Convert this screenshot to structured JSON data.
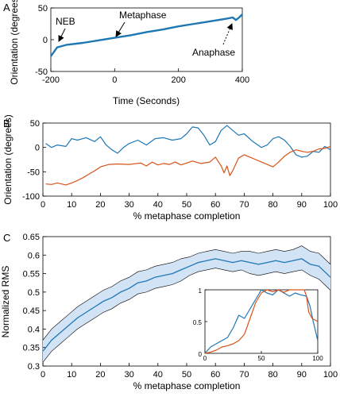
{
  "colors": {
    "blue": "#1f77b4",
    "orange": "#d95319",
    "band": "#d2e3f5",
    "black": "#000000"
  },
  "chart_data": [
    {
      "panel": "A",
      "type": "line",
      "xlabel": "Time (Seconds)",
      "ylabel": "Orientation (degrees)",
      "xlim": [
        -200,
        400
      ],
      "ylim": [
        -50,
        50
      ],
      "xticks": [
        -200,
        0,
        200,
        400
      ],
      "yticks": [
        -50,
        0,
        50
      ],
      "series": [
        {
          "color": "#1f77b4",
          "x": [
            -200,
            -180,
            -150,
            -100,
            -50,
            0,
            50,
            100,
            150,
            200,
            250,
            300,
            350,
            370,
            380,
            390,
            400
          ],
          "y": [
            -26,
            -12,
            -8,
            -5,
            -1,
            3,
            7,
            12,
            16,
            21,
            25,
            29,
            33,
            35,
            31,
            35,
            40
          ]
        }
      ],
      "annotations": [
        {
          "text": "NEB",
          "x": -185,
          "y": -10
        },
        {
          "text": "Metaphase",
          "x": 0,
          "y": 0
        },
        {
          "text": "Anaphase",
          "x": 380,
          "y": 38
        }
      ]
    },
    {
      "panel": "B",
      "type": "line",
      "xlabel": "% metaphase completion",
      "ylabel": "Orientation (degrees)",
      "xlim": [
        0,
        100
      ],
      "ylim": [
        -100,
        50
      ],
      "xticks": [
        0,
        10,
        20,
        30,
        40,
        50,
        60,
        70,
        80,
        90,
        100
      ],
      "yticks": [
        -100,
        -50,
        0,
        50
      ],
      "series": [
        {
          "color": "#1f77b4",
          "x": [
            1,
            3,
            5,
            8,
            10,
            12,
            15,
            18,
            20,
            22,
            24,
            26,
            28,
            30,
            33,
            36,
            39,
            42,
            45,
            48,
            50,
            52,
            54,
            56,
            58,
            60,
            62,
            64,
            66,
            68,
            70,
            73,
            76,
            78,
            80,
            82,
            84,
            86,
            88,
            90,
            92,
            94,
            96,
            98,
            100
          ],
          "y": [
            8,
            0,
            5,
            2,
            18,
            15,
            20,
            12,
            22,
            5,
            -5,
            -12,
            0,
            8,
            15,
            5,
            18,
            20,
            15,
            18,
            28,
            42,
            40,
            25,
            5,
            12,
            35,
            45,
            35,
            25,
            28,
            12,
            0,
            5,
            18,
            22,
            15,
            2,
            -15,
            -20,
            -18,
            -8,
            -10,
            2,
            -5
          ]
        },
        {
          "color": "#d95319",
          "x": [
            1,
            3,
            5,
            8,
            10,
            12,
            14,
            16,
            18,
            20,
            23,
            26,
            30,
            34,
            36,
            38,
            40,
            42,
            44,
            46,
            48,
            50,
            52,
            55,
            58,
            60,
            62,
            63,
            64,
            65,
            66,
            68,
            70,
            72,
            74,
            76,
            78,
            80,
            82,
            84,
            86,
            88,
            90,
            92,
            94,
            96,
            98,
            100
          ],
          "y": [
            -75,
            -76,
            -73,
            -77,
            -73,
            -68,
            -62,
            -55,
            -48,
            -40,
            -35,
            -34,
            -35,
            -32,
            -38,
            -30,
            -36,
            -33,
            -35,
            -30,
            -36,
            -32,
            -28,
            -33,
            -30,
            -20,
            -38,
            -52,
            -38,
            -58,
            -48,
            -22,
            -15,
            -20,
            -25,
            -30,
            -35,
            -40,
            -30,
            -18,
            -10,
            -5,
            -8,
            -10,
            -8,
            -3,
            -2,
            2
          ]
        }
      ]
    },
    {
      "panel": "C",
      "type": "line",
      "xlabel": "% metaphase completion",
      "ylabel": "Normalized RMS",
      "xlim": [
        0,
        100
      ],
      "ylim": [
        0.3,
        0.65
      ],
      "xticks": [
        0,
        10,
        20,
        30,
        40,
        50,
        60,
        70,
        80,
        90,
        100
      ],
      "yticks": [
        0.3,
        0.35,
        0.4,
        0.45,
        0.5,
        0.55,
        0.6,
        0.65
      ],
      "series": [
        {
          "color": "#1f77b4",
          "x": [
            0,
            3,
            6,
            9,
            12,
            15,
            18,
            21,
            24,
            27,
            30,
            33,
            36,
            39,
            42,
            45,
            48,
            51,
            54,
            57,
            60,
            63,
            66,
            69,
            72,
            75,
            78,
            81,
            84,
            87,
            90,
            93,
            96,
            100
          ],
          "y": [
            0.34,
            0.37,
            0.39,
            0.41,
            0.43,
            0.445,
            0.46,
            0.475,
            0.485,
            0.5,
            0.51,
            0.525,
            0.53,
            0.54,
            0.545,
            0.55,
            0.56,
            0.57,
            0.58,
            0.585,
            0.59,
            0.585,
            0.58,
            0.585,
            0.58,
            0.575,
            0.58,
            0.585,
            0.58,
            0.585,
            0.59,
            0.575,
            0.57,
            0.54
          ],
          "band_upper": [
            0.37,
            0.4,
            0.42,
            0.44,
            0.46,
            0.475,
            0.49,
            0.505,
            0.515,
            0.53,
            0.54,
            0.555,
            0.56,
            0.57,
            0.575,
            0.58,
            0.59,
            0.595,
            0.605,
            0.61,
            0.615,
            0.61,
            0.605,
            0.61,
            0.61,
            0.605,
            0.61,
            0.615,
            0.61,
            0.615,
            0.625,
            0.61,
            0.605,
            0.575
          ],
          "band_lower": [
            0.31,
            0.34,
            0.36,
            0.38,
            0.4,
            0.415,
            0.43,
            0.445,
            0.455,
            0.47,
            0.48,
            0.495,
            0.5,
            0.51,
            0.515,
            0.52,
            0.53,
            0.545,
            0.555,
            0.56,
            0.565,
            0.56,
            0.555,
            0.56,
            0.55,
            0.545,
            0.55,
            0.555,
            0.55,
            0.555,
            0.56,
            0.545,
            0.535,
            0.505
          ]
        }
      ],
      "inset": {
        "type": "line",
        "xlim": [
          0,
          100
        ],
        "ylim": [
          0,
          1
        ],
        "xticks": [
          0,
          50,
          100
        ],
        "yticks": [
          0,
          0.5,
          1
        ],
        "series": [
          {
            "color": "#1f77b4",
            "x": [
              0,
              5,
              10,
              15,
              20,
              25,
              30,
              35,
              40,
              45,
              50,
              55,
              60,
              65,
              70,
              75,
              80,
              85,
              90,
              93,
              96,
              100
            ],
            "y": [
              0.0,
              0.1,
              0.15,
              0.2,
              0.25,
              0.4,
              0.6,
              0.55,
              0.7,
              0.85,
              1.0,
              0.95,
              0.92,
              1.0,
              0.95,
              0.9,
              0.95,
              0.92,
              0.9,
              0.75,
              0.5,
              0.2
            ]
          },
          {
            "color": "#d95319",
            "x": [
              0,
              5,
              10,
              15,
              20,
              25,
              30,
              35,
              40,
              45,
              50,
              55,
              60,
              65,
              70,
              75,
              80,
              85,
              88,
              90,
              92,
              95,
              100
            ],
            "y": [
              0.0,
              0.02,
              0.05,
              0.1,
              0.12,
              0.15,
              0.2,
              0.3,
              0.55,
              0.8,
              0.95,
              1.0,
              0.97,
              1.0,
              0.96,
              1.0,
              1.0,
              1.0,
              1.0,
              0.9,
              0.65,
              0.55,
              0.5
            ]
          }
        ]
      }
    }
  ],
  "panel_letters": [
    "A",
    "B",
    "C"
  ]
}
